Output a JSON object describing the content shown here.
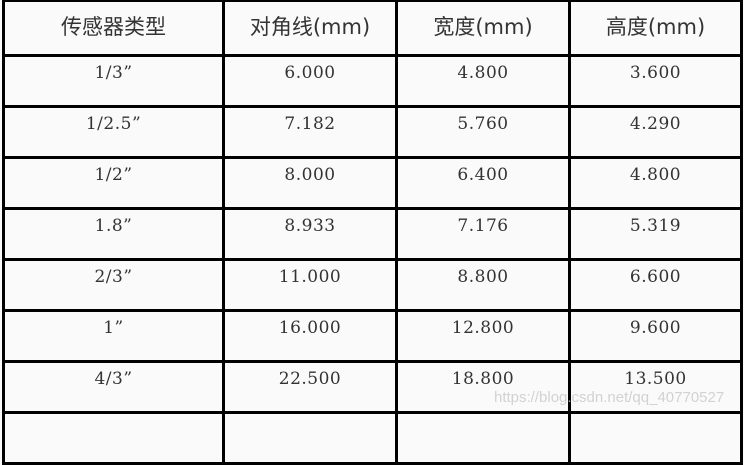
{
  "table": {
    "headers": [
      "传感器类型",
      "对角线(mm)",
      "宽度(mm)",
      "高度(mm)"
    ],
    "rows": [
      [
        "1/3”",
        "6.000",
        "4.800",
        "3.600"
      ],
      [
        "1/2.5”",
        "7.182",
        "5.760",
        "4.290"
      ],
      [
        "1/2”",
        "8.000",
        "6.400",
        "4.800"
      ],
      [
        "1.8”",
        "8.933",
        "7.176",
        "5.319"
      ],
      [
        "2/3”",
        "11.000",
        "8.800",
        "6.600"
      ],
      [
        "1”",
        "16.000",
        "12.800",
        "9.600"
      ],
      [
        "4/3”",
        "22.500",
        "18.800",
        "13.500"
      ],
      [
        "",
        "",
        "",
        ""
      ]
    ]
  },
  "watermark": "https://blog.csdn.net/qq_40770527"
}
